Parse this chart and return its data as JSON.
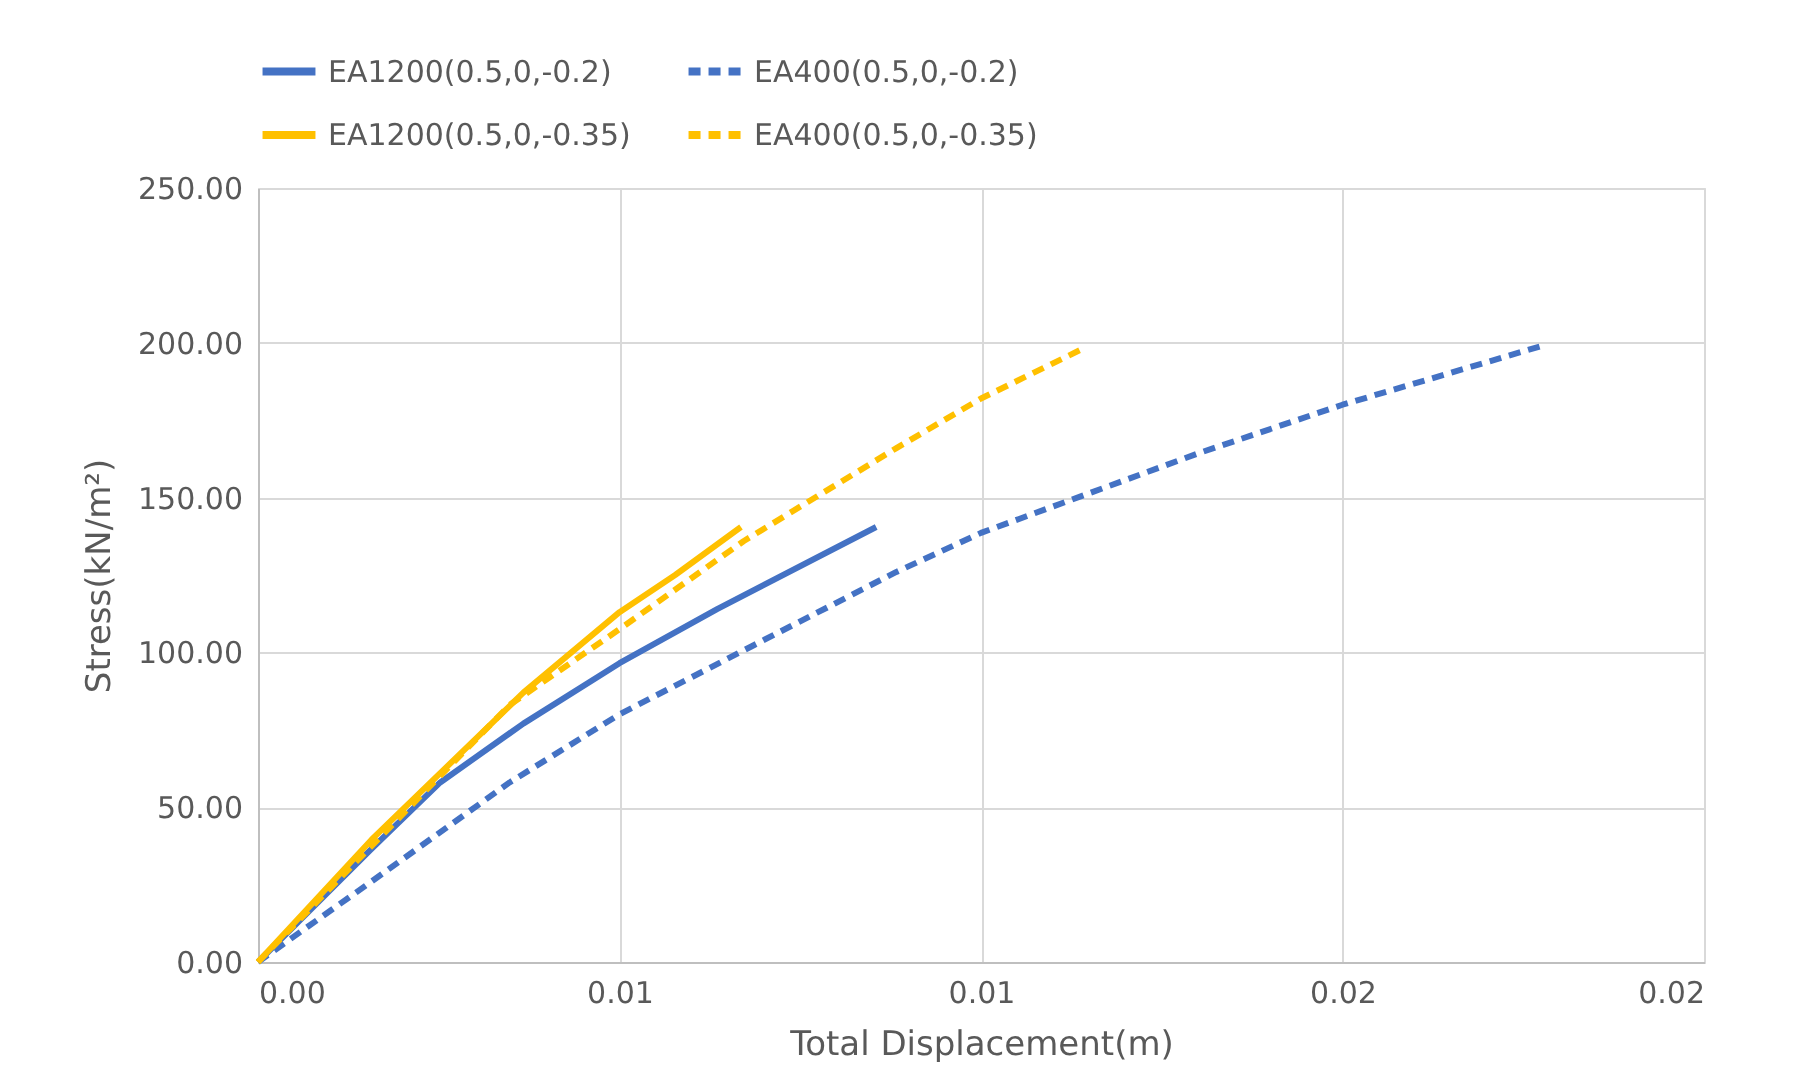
{
  "chart_data": {
    "type": "line",
    "xlabel": "Total Displacement(m)",
    "ylabel": "Stress(kN/m²)",
    "xlim": [
      0,
      0.02
    ],
    "xticks": [
      {
        "value": 0,
        "label": "0.00"
      },
      {
        "value": 0.005,
        "label": "0.01"
      },
      {
        "value": 0.01,
        "label": "0.01"
      },
      {
        "value": 0.015,
        "label": "0.02"
      },
      {
        "value": 0.02,
        "label": "0.02"
      }
    ],
    "ylim": [
      0,
      250
    ],
    "yticks": [
      {
        "value": 0,
        "label": "0.00"
      },
      {
        "value": 50,
        "label": "50.00"
      },
      {
        "value": 100,
        "label": "100.00"
      },
      {
        "value": 150,
        "label": "150.00"
      },
      {
        "value": 200,
        "label": "200.00"
      },
      {
        "value": 250,
        "label": "250.00"
      }
    ],
    "grid": true,
    "legend": "top",
    "marker": "none",
    "series": [
      {
        "name": "EA1200(0.5,0,-0.2)",
        "color": "#4472c4",
        "line_style": "solid",
        "x": [
          0,
          0.00157,
          0.00252,
          0.00367,
          0.005,
          0.00635,
          0.00855
        ],
        "values": [
          0,
          36.5,
          58,
          77,
          96.5,
          114,
          140.5
        ]
      },
      {
        "name": "EA400(0.5,0,-0.2)",
        "color": "#4472c4",
        "line_style": "dashed",
        "x": [
          0,
          0.00157,
          0.00348,
          0.005,
          0.00683,
          0.00883,
          0.01,
          0.01303,
          0.015,
          0.0178
        ],
        "values": [
          0,
          26,
          58,
          80,
          102,
          126,
          138.6,
          164.5,
          180,
          199.3
        ]
      },
      {
        "name": "EA1200(0.5,0,-0.35)",
        "color": "#ffc000",
        "line_style": "solid",
        "x": [
          0,
          0.00157,
          0.00367,
          0.005,
          0.00577,
          0.00668
        ],
        "values": [
          0,
          39.5,
          87,
          113,
          125,
          140.5
        ]
      },
      {
        "name": "EA400(0.5,0,-0.35)",
        "color": "#ffc000",
        "line_style": "dashed",
        "x": [
          0,
          0.00348,
          0.005,
          0.00672,
          0.00883,
          0.01,
          0.0114
        ],
        "values": [
          0,
          83,
          107.5,
          136,
          166,
          182,
          198
        ]
      }
    ]
  }
}
